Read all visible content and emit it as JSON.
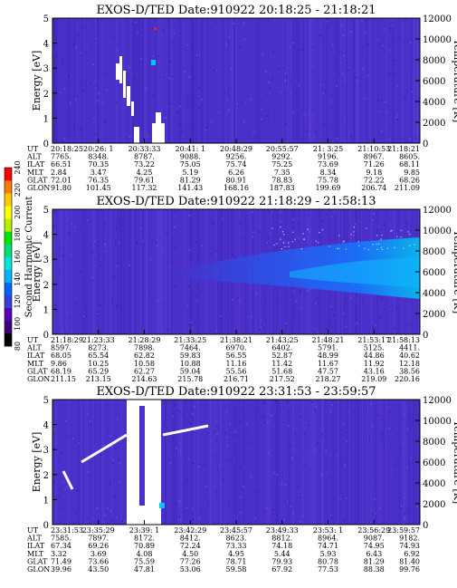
{
  "colorbar": {
    "label": "Second Harmonic Current",
    "ticks": [
      "240",
      "220",
      "200",
      "180",
      "160",
      "140",
      "120",
      "100",
      "80"
    ],
    "colors": [
      "#000000",
      "#3c0078",
      "#5a00b4",
      "#3c3cdc",
      "#0064ff",
      "#00b4ff",
      "#00e6dc",
      "#00dc78",
      "#00e600",
      "#b4f000",
      "#ffff00",
      "#ffc800",
      "#ff7800",
      "#ff0000"
    ]
  },
  "chart_data": [
    {
      "type": "heatmap",
      "title": "EXOS-D/TED   Date:910922  20:18:25 - 21:18:21",
      "ylabel": "Energy [eV]",
      "y2label": "Temperature [K]",
      "yticks": [
        "0",
        "1",
        "2",
        "3",
        "4",
        "5"
      ],
      "y2ticks": [
        "0",
        "2000",
        "4000",
        "6000",
        "8000",
        "10000",
        "12000"
      ],
      "ylim": [
        0,
        5
      ],
      "y2lim": [
        0,
        12000
      ],
      "ephemeris": [
        {
          "label": "UT",
          "values": [
            "20:18:25",
            "20:26: 1",
            "20:33:33",
            "20:41: 1",
            "20:48:29",
            "20:55:57",
            "21: 3:25",
            "21:10:53",
            "21:18:21"
          ]
        },
        {
          "label": "ALT",
          "values": [
            "7765.",
            "8348.",
            "8787.",
            "9088.",
            "9256.",
            "9292.",
            "9196.",
            "8967.",
            "8605."
          ]
        },
        {
          "label": "ILAT",
          "values": [
            "66.51",
            "70.35",
            "73.22",
            "75.05",
            "75.74",
            "75.25",
            "73.69",
            "71.26",
            "68.11"
          ]
        },
        {
          "label": "MLT",
          "values": [
            "2.84",
            "3.47",
            "4.25",
            "5.19",
            "6.26",
            "7.35",
            "8.34",
            "9.18",
            "9.85"
          ]
        },
        {
          "label": "GLAT",
          "values": [
            "72.01",
            "76.35",
            "79.61",
            "81.29",
            "80.91",
            "78.83",
            "75.78",
            "72.22",
            "68.26"
          ]
        },
        {
          "label": "GLON",
          "values": [
            "91.80",
            "101.45",
            "117.32",
            "141.43",
            "168.16",
            "187.83",
            "199.69",
            "206.74",
            "211.09"
          ]
        }
      ]
    },
    {
      "type": "heatmap",
      "title": "EXOS-D/TED   Date:910922  21:18:29 - 21:58:13",
      "ylabel": "Energy [eV]",
      "y2label": "Temperature [K]",
      "yticks": [
        "0",
        "1",
        "2",
        "3",
        "4",
        "5"
      ],
      "y2ticks": [
        "0",
        "2000",
        "4000",
        "6000",
        "8000",
        "10000",
        "12000"
      ],
      "ylim": [
        0,
        5
      ],
      "y2lim": [
        0,
        12000
      ],
      "ephemeris": [
        {
          "label": "UT",
          "values": [
            "21:18:29",
            "21:23:33",
            "21:28:29",
            "21:33:25",
            "21:38:21",
            "21:43:25",
            "21:48:21",
            "21:53:17",
            "21:58:13"
          ]
        },
        {
          "label": "ALT",
          "values": [
            "8597.",
            "8273.",
            "7898.",
            "7464.",
            "6970.",
            "6402.",
            "5791.",
            "5125.",
            "4411."
          ]
        },
        {
          "label": "ILAT",
          "values": [
            "68.05",
            "65.54",
            "62.82",
            "59.83",
            "56.55",
            "52.87",
            "48.99",
            "44.86",
            "40.62"
          ]
        },
        {
          "label": "MLT",
          "values": [
            "9.86",
            "10.25",
            "10.58",
            "10.88",
            "11.16",
            "11.42",
            "11.67",
            "11.92",
            "12.18"
          ]
        },
        {
          "label": "GLAT",
          "values": [
            "68.19",
            "65.29",
            "62.27",
            "59.04",
            "55.56",
            "51.68",
            "47.57",
            "43.16",
            "38.56"
          ]
        },
        {
          "label": "GLON",
          "values": [
            "211.15",
            "213.15",
            "214.63",
            "215.78",
            "216.71",
            "217.52",
            "218.27",
            "219.09",
            "220.16"
          ]
        }
      ]
    },
    {
      "type": "heatmap",
      "title": "EXOS-D/TED   Date:910922  23:31:53 - 23:59:57",
      "ylabel": "Energy [eV]",
      "y2label": "Temperature [K]",
      "yticks": [
        "0",
        "1",
        "2",
        "3",
        "4",
        "5"
      ],
      "y2ticks": [
        "0",
        "2000",
        "4000",
        "6000",
        "8000",
        "10000",
        "12000"
      ],
      "ylim": [
        0,
        5
      ],
      "y2lim": [
        0,
        12000
      ],
      "ephemeris": [
        {
          "label": "UT",
          "values": [
            "23:31:53",
            "23:35:29",
            "23:39: 1",
            "23:42:29",
            "23:45:57",
            "23:49:33",
            "23:53: 1",
            "23:56:29",
            "23:59:57"
          ]
        },
        {
          "label": "ALT",
          "values": [
            "7585.",
            "7897.",
            "8172.",
            "8412.",
            "8623.",
            "8812.",
            "8964.",
            "9087.",
            "9182."
          ]
        },
        {
          "label": "ILAT",
          "values": [
            "67.34",
            "69.26",
            "70.89",
            "72.24",
            "73.33",
            "74.18",
            "74.71",
            "74.95",
            "74.93"
          ]
        },
        {
          "label": "MLT",
          "values": [
            "3.32",
            "3.69",
            "4.08",
            "4.50",
            "4.95",
            "5.44",
            "5.93",
            "6.43",
            "6.92"
          ]
        },
        {
          "label": "GLAT",
          "values": [
            "71.49",
            "73.66",
            "75.59",
            "77.26",
            "78.71",
            "79.93",
            "80.78",
            "81.29",
            "81.40"
          ]
        },
        {
          "label": "GLON",
          "values": [
            "39.96",
            "43.50",
            "47.81",
            "53.06",
            "59.58",
            "67.92",
            "77.53",
            "88.38",
            "99.76"
          ]
        }
      ]
    }
  ]
}
